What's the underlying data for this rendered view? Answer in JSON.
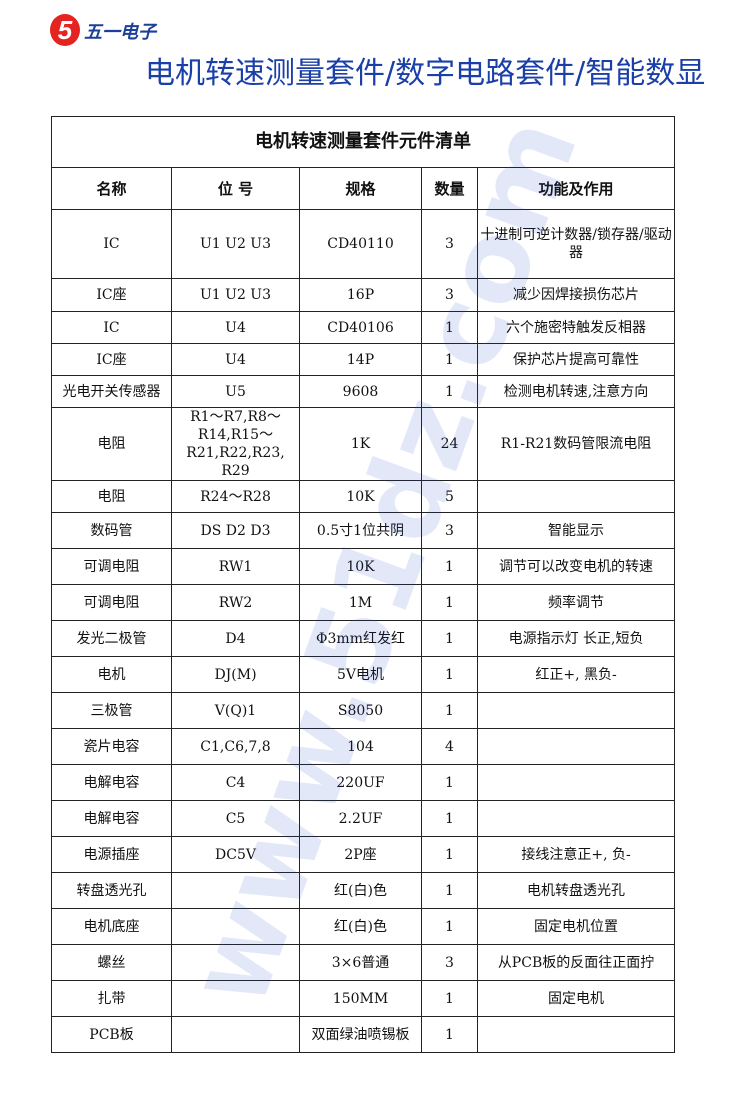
{
  "logo": {
    "mark": "5",
    "text": "五一电子"
  },
  "headline": "电机转速测量套件/数字电路套件/智能数显",
  "watermark": "www.51dz.com",
  "table": {
    "title": "电机转速测量套件元件清单",
    "headers": [
      "名称",
      "位 号",
      "规格",
      "数量",
      "功能及作用"
    ],
    "rows": [
      [
        "IC",
        "U1 U2 U3",
        "CD40110",
        "3",
        "十进制可逆计数器/锁存器/驱动器"
      ],
      [
        "IC座",
        "U1 U2 U3",
        "16P",
        "3",
        "减少因焊接损伤芯片"
      ],
      [
        "IC",
        "U4",
        "CD40106",
        "1",
        "六个施密特触发反相器"
      ],
      [
        "IC座",
        "U4",
        "14P",
        "1",
        "保护芯片提高可靠性"
      ],
      [
        "光电开关传感器",
        "U5",
        "9608",
        "1",
        "检测电机转速,注意方向"
      ],
      [
        "电阻",
        "R1～R7,R8～R14,R15～R21,R22,R23, R29",
        "1K",
        "24",
        "R1-R21数码管限流电阻"
      ],
      [
        "电阻",
        "R24～R28",
        "10K",
        "5",
        ""
      ],
      [
        "数码管",
        "DS D2 D3",
        "0.5寸1位共阴",
        "3",
        "智能显示"
      ],
      [
        "可调电阻",
        "RW1",
        "10K",
        "1",
        "调节可以改变电机的转速"
      ],
      [
        "可调电阻",
        "RW2",
        "1M",
        "1",
        "频率调节"
      ],
      [
        "发光二极管",
        "D4",
        "Φ3mm红发红",
        "1",
        "电源指示灯 长正,短负"
      ],
      [
        "电机",
        "DJ(M)",
        "5V电机",
        "1",
        "红正+, 黑负-"
      ],
      [
        "三极管",
        "V(Q)1",
        "S8050",
        "1",
        ""
      ],
      [
        "瓷片电容",
        "C1,C6,7,8",
        "104",
        "4",
        ""
      ],
      [
        "电解电容",
        "C4",
        "220UF",
        "1",
        ""
      ],
      [
        "电解电容",
        "C5",
        "2.2UF",
        "1",
        ""
      ],
      [
        "电源插座",
        "DC5V",
        "2P座",
        "1",
        "接线注意正+, 负-"
      ],
      [
        "转盘透光孔",
        "",
        "红(白)色",
        "1",
        "电机转盘透光孔"
      ],
      [
        "电机底座",
        "",
        "红(白)色",
        "1",
        "固定电机位置"
      ],
      [
        "螺丝",
        "",
        "3×6普通",
        "3",
        "从PCB板的反面往正面拧"
      ],
      [
        "扎带",
        "",
        "150MM",
        "1",
        "固定电机"
      ],
      [
        "PCB板",
        "",
        "双面绿油喷锡板",
        "1",
        ""
      ]
    ]
  }
}
